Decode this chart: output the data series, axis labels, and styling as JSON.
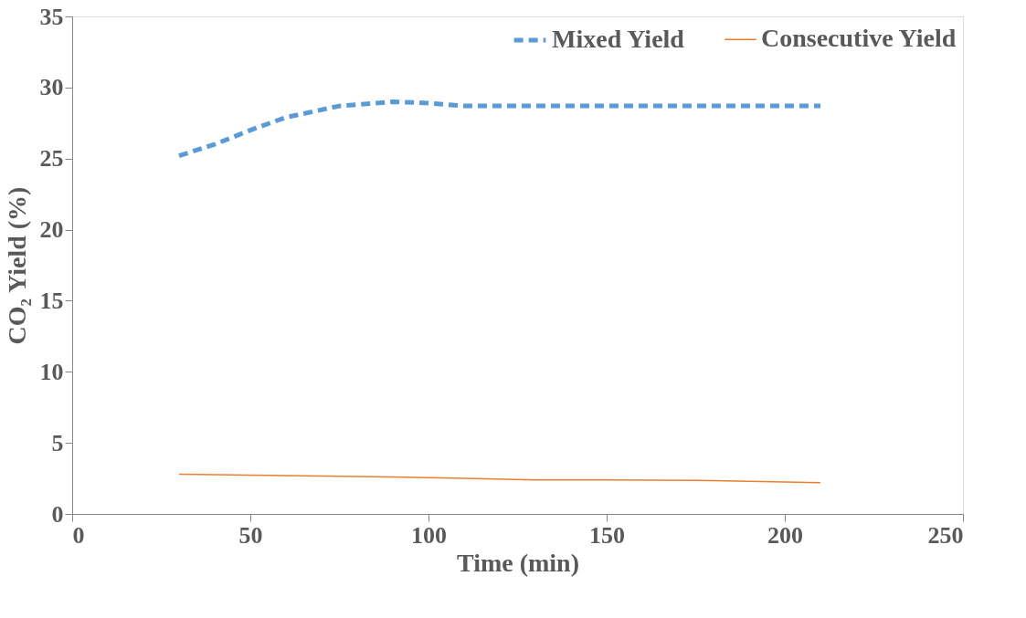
{
  "chart_data": {
    "type": "line",
    "xlabel": "Time (min)",
    "ylabel": "CO₂ Yield (%)",
    "xlim": [
      0,
      250
    ],
    "xticks": [
      0,
      50,
      100,
      150,
      200,
      250
    ],
    "ylim": [
      0,
      35
    ],
    "yticks": [
      0,
      5,
      10,
      15,
      20,
      25,
      30,
      35
    ],
    "grid": false,
    "legend": "top right",
    "marker": "none",
    "series": [
      {
        "name": "Mixed Yield",
        "color": "#5b9bd5",
        "line_style": "dashed",
        "x": [
          30,
          40,
          50,
          60,
          75,
          90,
          100,
          110,
          120,
          150,
          180,
          210
        ],
        "values": [
          25.2,
          26.0,
          27.0,
          27.9,
          28.7,
          29.0,
          28.9,
          28.7,
          28.7,
          28.7,
          28.7,
          28.7
        ]
      },
      {
        "name": "Consecutive Yield",
        "color": "#ed7d31",
        "line_style": "solid",
        "x": [
          30,
          60,
          90,
          110,
          130,
          150,
          180,
          210
        ],
        "values": [
          2.8,
          2.7,
          2.6,
          2.5,
          2.4,
          2.4,
          2.35,
          2.2
        ]
      }
    ]
  }
}
